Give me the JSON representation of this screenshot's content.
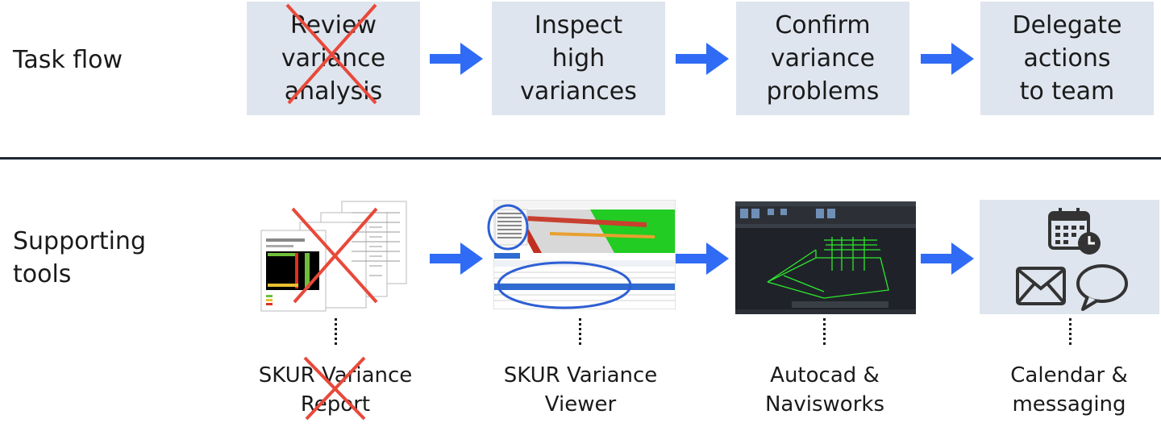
{
  "rows": {
    "task_flow_label": "Task flow",
    "supporting_tools_label": "Supporting\ntools"
  },
  "task_flow": [
    {
      "label": "Review\nvariance\nanalysis",
      "crossed_out": true
    },
    {
      "label": "Inspect\nhigh\nvariances",
      "crossed_out": false
    },
    {
      "label": "Confirm\nvariance\nproblems",
      "crossed_out": false
    },
    {
      "label": "Delegate\nactions\nto team",
      "crossed_out": false
    }
  ],
  "tools": [
    {
      "label": "SKUR Variance\nReport",
      "crossed_out": true
    },
    {
      "label": "SKUR Variance\nViewer",
      "crossed_out": false
    },
    {
      "label": "Autocad &\nNavisworks",
      "crossed_out": false
    },
    {
      "label": "Calendar &\nmessaging",
      "crossed_out": false
    }
  ],
  "colors": {
    "arrow": "#2f6bf5",
    "box_fill": "#dfe5ee",
    "cross": "#e8493a",
    "highlight_ring": "#2e5fd4",
    "divider": "#1e2633"
  },
  "icons": [
    "calendar-clock-icon",
    "envelope-icon",
    "speech-bubble-icon"
  ]
}
